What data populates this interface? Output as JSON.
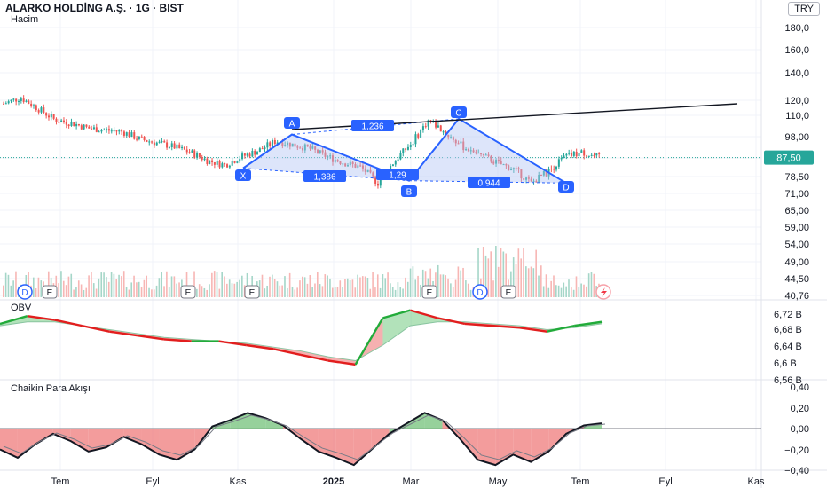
{
  "header": {
    "title": "ALARKO HOLDİNG A.Ş. · 1G · BIST",
    "volume_label": "Hacim",
    "currency": "TRY"
  },
  "panes": {
    "obv_label": "OBV",
    "cmf_label": "Chaikin Para Akışı"
  },
  "price_axis": [
    "180,0",
    "160,0",
    "140,0",
    "120,0",
    "110,0",
    "98,00",
    "87,50",
    "78,50",
    "71,00",
    "65,00",
    "59,00",
    "54,00",
    "49,00",
    "44,50",
    "40,76"
  ],
  "last_price": "87,50",
  "obv_axis": [
    "6,72 B",
    "6,68 B",
    "6,64 B",
    "6,6 B",
    "6,56 B"
  ],
  "cmf_axis": [
    "0,40",
    "0,20",
    "0,00",
    "−0,20",
    "−0,40"
  ],
  "time_axis": [
    "Tem",
    "Eyl",
    "Kas",
    "2025",
    "Mar",
    "May",
    "Tem",
    "Eyl",
    "Kas"
  ],
  "pattern": {
    "points": [
      "X",
      "A",
      "B",
      "C",
      "D"
    ],
    "ratios": [
      "1,236",
      "1,386",
      "1,29",
      "0,944"
    ]
  },
  "event_markers": [
    "D",
    "E",
    "E",
    "E",
    "E",
    "D",
    "E"
  ],
  "colors": {
    "up": "#26a69a",
    "down": "#ef5350",
    "pattern": "#2962ff",
    "pattern_fill": "#b3c5f5",
    "trendline": "#131722",
    "obv_up": "#22ab3a",
    "obv_down": "#e21e1e",
    "cmf_pos": "#73c17a",
    "cmf_neg": "#ef7b7b"
  },
  "chart_data": [
    {
      "type": "candlestick",
      "title": "ALARKO HOLDİNG A.Ş. · 1G · BIST",
      "x_ticks": [
        "Tem",
        "Eyl",
        "Kas",
        "2025",
        "Mar",
        "May",
        "Tem",
        "Eyl",
        "Kas"
      ],
      "y_ticks": [
        180,
        160,
        140,
        120,
        110,
        98,
        87.5,
        78.5,
        71,
        65,
        59,
        54,
        49,
        44.5,
        40.76
      ],
      "scale": "log",
      "last_value": 87.5,
      "close_path": [
        {
          "x": "Haz 2024",
          "y": 118
        },
        {
          "x": "Tem",
          "y": 122
        },
        {
          "x": "Tem",
          "y": 115
        },
        {
          "x": "Tem",
          "y": 108
        },
        {
          "x": "Ağu",
          "y": 106
        },
        {
          "x": "Ağu",
          "y": 103
        },
        {
          "x": "Ağu",
          "y": 102
        },
        {
          "x": "Eyl",
          "y": 101
        },
        {
          "x": "Eyl",
          "y": 97
        },
        {
          "x": "Eyl",
          "y": 95
        },
        {
          "x": "Eki",
          "y": 93
        },
        {
          "x": "Eki",
          "y": 90
        },
        {
          "x": "Eki",
          "y": 86
        },
        {
          "x": "Kas",
          "y": 84
        },
        {
          "x": "Kas",
          "y": 88
        },
        {
          "x": "Kas",
          "y": 91
        },
        {
          "x": "Ara",
          "y": 96
        },
        {
          "x": "Ara",
          "y": 94
        },
        {
          "x": "Oca 2025",
          "y": 92
        },
        {
          "x": "Oca",
          "y": 88
        },
        {
          "x": "Şub",
          "y": 85
        },
        {
          "x": "Şub",
          "y": 83
        },
        {
          "x": "Mar",
          "y": 76
        },
        {
          "x": "Mar",
          "y": 86
        },
        {
          "x": "Mar",
          "y": 95
        },
        {
          "x": "Nis",
          "y": 108
        },
        {
          "x": "Nis",
          "y": 100
        },
        {
          "x": "Nis",
          "y": 93
        },
        {
          "x": "May",
          "y": 89
        },
        {
          "x": "May",
          "y": 85
        },
        {
          "x": "Haz",
          "y": 82
        },
        {
          "x": "Haz",
          "y": 76
        },
        {
          "x": "Tem",
          "y": 81
        },
        {
          "x": "Tem",
          "y": 88
        },
        {
          "x": "Tem",
          "y": 90
        },
        {
          "x": "Tem",
          "y": 87.5
        }
      ],
      "harmonic_pattern": [
        {
          "label": "X",
          "y": 82.5
        },
        {
          "label": "A",
          "y": 99.5
        },
        {
          "label": "B",
          "y": 77
        },
        {
          "label": "C",
          "y": 108.5
        },
        {
          "label": "D",
          "y": 76
        }
      ],
      "pattern_ratios": [
        1.236,
        1.386,
        1.29,
        0.944
      ]
    },
    {
      "type": "line",
      "title": "OBV",
      "y_ticks": [
        "6,72 B",
        "6,68 B",
        "6,64 B",
        "6,6 B",
        "6,56 B"
      ],
      "values_B": [
        6.695,
        6.715,
        6.705,
        6.69,
        6.675,
        6.665,
        6.655,
        6.65,
        6.65,
        6.64,
        6.63,
        6.615,
        6.6,
        6.59,
        6.71,
        6.73,
        6.71,
        6.695,
        6.69,
        6.685,
        6.675,
        6.69,
        6.7
      ],
      "signal_B": [
        6.69,
        6.7,
        6.7,
        6.69,
        6.68,
        6.67,
        6.66,
        6.655,
        6.65,
        6.645,
        6.635,
        6.625,
        6.61,
        6.6,
        6.64,
        6.69,
        6.7,
        6.7,
        6.695,
        6.69,
        6.68,
        6.685,
        6.695
      ]
    },
    {
      "type": "area",
      "title": "Chaikin Para Akışı",
      "y_ticks": [
        0.4,
        0.2,
        0,
        -0.2,
        -0.4
      ],
      "values": [
        -0.2,
        -0.28,
        -0.15,
        -0.05,
        -0.12,
        -0.22,
        -0.18,
        -0.08,
        -0.15,
        -0.25,
        -0.3,
        -0.2,
        0.02,
        0.08,
        0.15,
        0.1,
        0.03,
        -0.1,
        -0.22,
        -0.28,
        -0.35,
        -0.2,
        -0.05,
        0.05,
        0.15,
        0.08,
        -0.1,
        -0.3,
        -0.35,
        -0.25,
        -0.32,
        -0.22,
        -0.05,
        0.03,
        0.05
      ]
    }
  ]
}
